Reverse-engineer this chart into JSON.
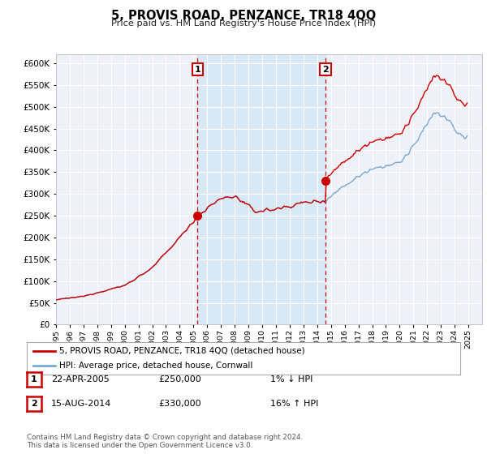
{
  "title": "5, PROVIS ROAD, PENZANCE, TR18 4QQ",
  "subtitle": "Price paid vs. HM Land Registry's House Price Index (HPI)",
  "hpi_color": "#7aa8d2",
  "price_color": "#cc0000",
  "marker_color": "#cc0000",
  "shade_color": "#d8e8f5",
  "background_color": "#ffffff",
  "plot_bg_color": "#eef2f8",
  "grid_color": "#ffffff",
  "ylim": [
    0,
    620000
  ],
  "yticks": [
    0,
    50000,
    100000,
    150000,
    200000,
    250000,
    300000,
    350000,
    400000,
    450000,
    500000,
    550000,
    600000
  ],
  "sale1_year": 2005.3,
  "sale1_price": 250000,
  "sale1_label": "1",
  "sale2_year": 2014.6,
  "sale2_price": 330000,
  "sale2_label": "2",
  "legend_line1": "5, PROVIS ROAD, PENZANCE, TR18 4QQ (detached house)",
  "legend_line2": "HPI: Average price, detached house, Cornwall",
  "table_rows": [
    {
      "num": "1",
      "date": "22-APR-2005",
      "price": "£250,000",
      "change": "1% ↓ HPI"
    },
    {
      "num": "2",
      "date": "15-AUG-2014",
      "price": "£330,000",
      "change": "16% ↑ HPI"
    }
  ],
  "footnote": "Contains HM Land Registry data © Crown copyright and database right 2024.\nThis data is licensed under the Open Government Licence v3.0.",
  "xmin": 1995,
  "xmax": 2026
}
